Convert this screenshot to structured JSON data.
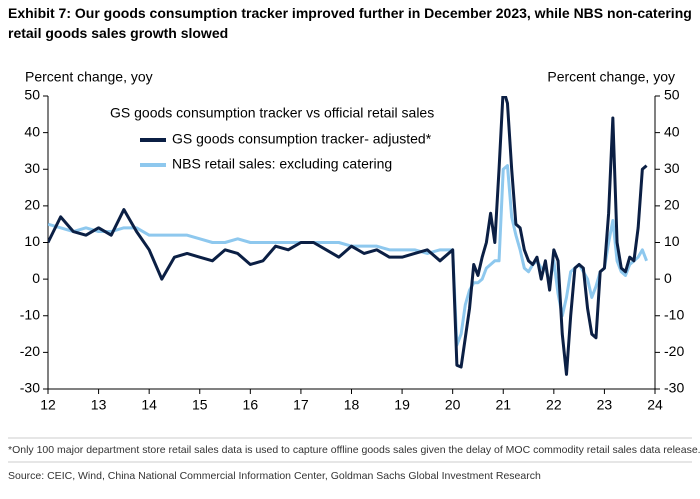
{
  "chart_data": {
    "type": "line",
    "title": "Exhibit 7: Our goods consumption tracker improved further in December 2023, while NBS non-catering retail goods sales growth slowed",
    "y_label": "Percent change, yoy",
    "y2_label": "Percent change, yoy",
    "legend_title": "GS goods consumption tracker vs official retail sales",
    "footnote": "*Only 100 major department store retail sales data is used to capture offline goods sales given the delay of MOC commodity retail sales data release.",
    "source": "Source: CEIC, Wind, China National Commercial Information Center, Goldman Sachs Global Investment Research",
    "xlim": [
      12,
      24
    ],
    "xticks": [
      12,
      13,
      14,
      15,
      16,
      17,
      18,
      19,
      20,
      21,
      22,
      23,
      24
    ],
    "ylim": [
      -30,
      50
    ],
    "yticks": [
      -30,
      -20,
      -10,
      0,
      10,
      20,
      30,
      40,
      50
    ],
    "y2lim": [
      -30,
      50
    ],
    "y2ticks": [
      -30,
      -20,
      -10,
      0,
      10,
      20,
      30,
      40,
      50
    ],
    "x": [
      12.0,
      12.25,
      12.5,
      12.75,
      13.0,
      13.25,
      13.5,
      13.75,
      14.0,
      14.25,
      14.5,
      14.75,
      15.0,
      15.25,
      15.5,
      15.75,
      16.0,
      16.25,
      16.5,
      16.75,
      17.0,
      17.25,
      17.5,
      17.75,
      18.0,
      18.25,
      18.5,
      18.75,
      19.0,
      19.25,
      19.5,
      19.75,
      20.0,
      20.0833,
      20.1667,
      20.25,
      20.3333,
      20.4167,
      20.5,
      20.5833,
      20.6667,
      20.75,
      20.8333,
      20.9167,
      21.0,
      21.0833,
      21.1667,
      21.25,
      21.3333,
      21.4167,
      21.5,
      21.5833,
      21.6667,
      21.75,
      21.8333,
      21.9167,
      22.0,
      22.0833,
      22.1667,
      22.25,
      22.3333,
      22.4167,
      22.5,
      22.5833,
      22.6667,
      22.75,
      22.8333,
      22.9167,
      23.0,
      23.0833,
      23.1667,
      23.25,
      23.3333,
      23.4167,
      23.5,
      23.5833,
      23.6667,
      23.75,
      23.8333
    ],
    "series": [
      {
        "name": "GS goods consumption tracker- adjusted*",
        "color": "#0b1f44",
        "values": [
          10,
          17,
          13,
          12,
          14,
          12,
          19,
          13,
          8,
          0,
          6,
          7,
          6,
          5,
          8,
          7,
          4,
          5,
          9,
          8,
          10,
          10,
          8,
          6,
          9,
          7,
          8,
          6,
          6,
          7,
          8,
          5,
          8,
          -23.5,
          -24,
          -16,
          -8,
          4,
          1,
          6,
          10,
          18,
          10,
          30,
          52,
          48,
          30,
          15,
          14,
          8,
          5,
          4,
          6,
          0,
          5,
          -3,
          8,
          5,
          -15,
          -26,
          -10,
          3,
          4,
          3,
          -8,
          -15,
          -16,
          2,
          3,
          18,
          44,
          10,
          3,
          2,
          6,
          5,
          14,
          30,
          31
        ]
      },
      {
        "name": "NBS retail sales: excluding catering",
        "color": "#8ec8ee",
        "values": [
          15,
          14,
          13,
          14,
          13,
          13,
          14,
          14,
          12,
          12,
          12,
          12,
          11,
          10,
          10,
          11,
          10,
          10,
          10,
          10,
          10,
          10,
          10,
          10,
          9,
          9,
          9,
          8,
          8,
          8,
          7,
          8,
          8,
          -18,
          -15,
          -7,
          -3,
          -1,
          -1,
          0,
          3,
          4,
          5,
          5,
          30,
          31,
          17,
          12,
          8,
          3,
          2,
          4,
          5,
          3,
          3,
          -1,
          5,
          -4,
          -10,
          -5,
          2,
          3,
          4,
          2,
          0,
          -5,
          -2,
          2,
          3,
          10,
          16,
          5,
          2,
          1,
          4,
          5,
          6,
          8,
          5
        ]
      }
    ]
  }
}
